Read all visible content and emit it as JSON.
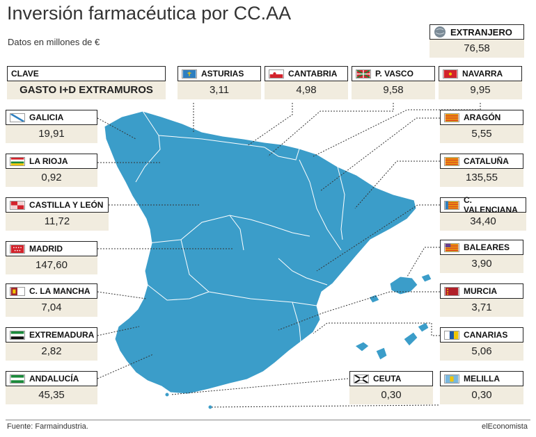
{
  "header": {
    "title": "Inversión farmacéutica por CC.AA",
    "subtitle": "Datos en millones de €"
  },
  "legend": {
    "key_label": "CLAVE",
    "key_value": "GASTO I+D  EXTRAMUROS"
  },
  "footer": {
    "source": "Fuente: Farmaindustria.",
    "brand": "elEconomista"
  },
  "colors": {
    "map_fill": "#3b9dc9",
    "value_bg": "#f1ecdf"
  },
  "chart_data": {
    "type": "table",
    "regions": [
      {
        "name": "EXTRANJERO",
        "value": "76,58",
        "flag": "globe"
      },
      {
        "name": "ASTURIAS",
        "value": "3,11",
        "flag": "asturias"
      },
      {
        "name": "CANTABRIA",
        "value": "4,98",
        "flag": "cantabria"
      },
      {
        "name": "P. VASCO",
        "value": "9,58",
        "flag": "pvasco"
      },
      {
        "name": "NAVARRA",
        "value": "9,95",
        "flag": "navarra"
      },
      {
        "name": "GALICIA",
        "value": "19,91",
        "flag": "galicia"
      },
      {
        "name": "LA RIOJA",
        "value": "0,92",
        "flag": "rioja"
      },
      {
        "name": "CASTILLA Y LEÓN",
        "value": "11,72",
        "flag": "cyl"
      },
      {
        "name": "MADRID",
        "value": "147,60",
        "flag": "madrid"
      },
      {
        "name": "C. LA MANCHA",
        "value": "7,04",
        "flag": "clm"
      },
      {
        "name": "EXTREMADURA",
        "value": "2,82",
        "flag": "extremadura"
      },
      {
        "name": "ANDALUCÍA",
        "value": "45,35",
        "flag": "andalucia"
      },
      {
        "name": "ARAGÓN",
        "value": "5,55",
        "flag": "aragon"
      },
      {
        "name": "CATALUÑA",
        "value": "135,55",
        "flag": "cataluna"
      },
      {
        "name": "C. VALENCIANA",
        "value": "34,40",
        "flag": "valencia"
      },
      {
        "name": "BALEARES",
        "value": "3,90",
        "flag": "baleares"
      },
      {
        "name": "MURCIA",
        "value": "3,71",
        "flag": "murcia"
      },
      {
        "name": "CANARIAS",
        "value": "5,06",
        "flag": "canarias"
      },
      {
        "name": "CEUTA",
        "value": "0,30",
        "flag": "ceuta"
      },
      {
        "name": "MELILLA",
        "value": "0,30",
        "flag": "melilla"
      }
    ]
  }
}
